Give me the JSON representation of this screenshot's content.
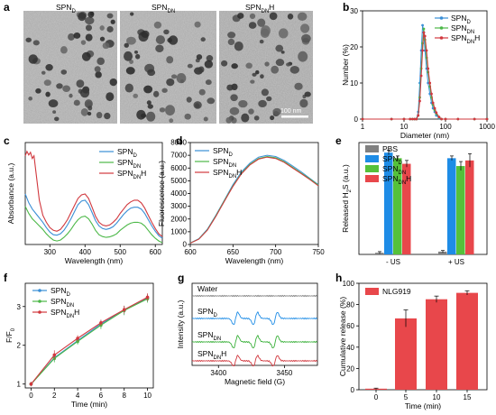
{
  "panel_labels": [
    "a",
    "b",
    "c",
    "d",
    "e",
    "f",
    "g",
    "h"
  ],
  "micrographs": [
    {
      "label": "SPN",
      "sub": "D"
    },
    {
      "label": "SPN",
      "sub": "DN"
    },
    {
      "label": "SPN",
      "sub": "DN",
      "suffix": "H"
    }
  ],
  "scale_bar": "100 nm",
  "colors": {
    "blue": "#3a8fd6",
    "green": "#4cb848",
    "red": "#d1383e",
    "grey": "#808080",
    "green_bar": "#55c13a",
    "red_bar": "#e8474b",
    "blue_bar": "#1e8ce6"
  },
  "chart_data": [
    {
      "panel": "b",
      "type": "line",
      "xlabel": "Diameter (nm)",
      "ylabel": "Number (%)",
      "xscale": "log",
      "xlim": [
        1,
        1000
      ],
      "ylim": [
        0,
        30
      ],
      "xticks": [
        "1",
        "10",
        "100",
        "1000"
      ],
      "yticks": [
        "0",
        "10",
        "20",
        "30"
      ],
      "legend": "top-right",
      "series": [
        {
          "name": "SPN",
          "sub": "D",
          "color": "#3a8fd6",
          "x": [
            1,
            5,
            10,
            14,
            16,
            18,
            20,
            22,
            24,
            26,
            28,
            30,
            32,
            35,
            38,
            42,
            46,
            50,
            55,
            60,
            70,
            80,
            100,
            200,
            500,
            1000
          ],
          "y": [
            0,
            0,
            0,
            0,
            0,
            0,
            0,
            2,
            10,
            19,
            26,
            24,
            19,
            14,
            10,
            7,
            4.5,
            3,
            2,
            1,
            0.3,
            0,
            0,
            0,
            0,
            0
          ]
        },
        {
          "name": "SPN",
          "sub": "DN",
          "color": "#4cb848",
          "x": [
            1,
            5,
            10,
            14,
            16,
            18,
            20,
            22,
            24,
            26,
            28,
            30,
            32,
            35,
            38,
            42,
            46,
            50,
            55,
            60,
            70,
            80,
            100,
            200,
            500,
            1000
          ],
          "y": [
            0,
            0,
            0,
            0,
            0,
            0,
            0,
            1,
            6,
            14,
            21,
            25,
            22,
            17,
            13,
            9,
            6,
            4,
            2.5,
            1.5,
            0.5,
            0,
            0,
            0,
            0,
            0
          ]
        },
        {
          "name": "SPN",
          "sub": "DN",
          "suffix": "H",
          "color": "#d1383e",
          "x": [
            1,
            5,
            10,
            14,
            16,
            18,
            20,
            22,
            24,
            26,
            28,
            30,
            32,
            35,
            38,
            42,
            46,
            50,
            55,
            60,
            70,
            80,
            100,
            200,
            500,
            1000
          ],
          "y": [
            0,
            0,
            0,
            0,
            0,
            0,
            0,
            1,
            5,
            12,
            19,
            24,
            23,
            19,
            14,
            10,
            7,
            4.5,
            3,
            1.8,
            0.6,
            0,
            0,
            0,
            0,
            0
          ]
        }
      ]
    },
    {
      "panel": "c",
      "type": "line",
      "xlabel": "Wavelength (nm)",
      "ylabel": "Absorbance (a.u.)",
      "xlim": [
        230,
        620
      ],
      "xticks": [
        "300",
        "400",
        "500",
        "600"
      ],
      "legend": "top-right",
      "series": [
        {
          "name": "SPN",
          "sub": "D",
          "color": "#3a8fd6",
          "x": [
            230,
            240,
            250,
            260,
            270,
            280,
            290,
            300,
            310,
            320,
            330,
            340,
            350,
            360,
            370,
            380,
            390,
            400,
            410,
            420,
            430,
            440,
            450,
            460,
            470,
            480,
            490,
            500,
            510,
            520,
            530,
            540,
            550,
            560,
            570,
            580,
            590,
            600,
            610,
            620
          ],
          "y": [
            0.62,
            0.52,
            0.45,
            0.4,
            0.35,
            0.3,
            0.24,
            0.19,
            0.16,
            0.155,
            0.17,
            0.21,
            0.27,
            0.34,
            0.42,
            0.5,
            0.54,
            0.55,
            0.5,
            0.41,
            0.32,
            0.26,
            0.23,
            0.22,
            0.23,
            0.25,
            0.29,
            0.34,
            0.39,
            0.43,
            0.46,
            0.47,
            0.47,
            0.45,
            0.4,
            0.33,
            0.26,
            0.2,
            0.15,
            0.12
          ]
        },
        {
          "name": "SPN",
          "sub": "DN",
          "color": "#4cb848",
          "x": [
            230,
            240,
            250,
            260,
            270,
            280,
            290,
            300,
            310,
            320,
            330,
            340,
            350,
            360,
            370,
            380,
            390,
            400,
            410,
            420,
            430,
            440,
            450,
            460,
            470,
            480,
            490,
            500,
            510,
            520,
            530,
            540,
            550,
            560,
            570,
            580,
            590,
            600,
            610,
            620
          ],
          "y": [
            0.48,
            0.4,
            0.34,
            0.3,
            0.26,
            0.22,
            0.17,
            0.13,
            0.1,
            0.09,
            0.1,
            0.13,
            0.17,
            0.22,
            0.28,
            0.33,
            0.36,
            0.37,
            0.34,
            0.28,
            0.21,
            0.16,
            0.14,
            0.13,
            0.135,
            0.15,
            0.17,
            0.21,
            0.24,
            0.27,
            0.29,
            0.3,
            0.3,
            0.29,
            0.26,
            0.21,
            0.16,
            0.12,
            0.09,
            0.07
          ]
        },
        {
          "name": "SPN",
          "sub": "DN",
          "suffix": "H",
          "color": "#d1383e",
          "x": [
            230,
            235,
            240,
            245,
            250,
            255,
            260,
            270,
            280,
            290,
            300,
            310,
            320,
            330,
            340,
            350,
            360,
            370,
            380,
            390,
            400,
            410,
            420,
            430,
            440,
            450,
            460,
            470,
            480,
            490,
            500,
            510,
            520,
            530,
            540,
            550,
            560,
            570,
            580,
            590,
            600,
            610,
            620
          ],
          "y": [
            1.05,
            1.1,
            1.06,
            1.09,
            1.02,
            1.05,
            0.88,
            0.55,
            0.38,
            0.3,
            0.24,
            0.21,
            0.2,
            0.22,
            0.27,
            0.33,
            0.41,
            0.49,
            0.57,
            0.61,
            0.62,
            0.57,
            0.47,
            0.37,
            0.3,
            0.27,
            0.26,
            0.27,
            0.3,
            0.34,
            0.4,
            0.45,
            0.5,
            0.53,
            0.55,
            0.55,
            0.52,
            0.46,
            0.38,
            0.3,
            0.23,
            0.17,
            0.14
          ]
        }
      ]
    },
    {
      "panel": "d",
      "type": "line",
      "xlabel": "Wavelength (nm)",
      "ylabel": "Fluorescence (a.u.)",
      "xlim": [
        600,
        750
      ],
      "ylim": [
        0,
        8000
      ],
      "xticks": [
        "600",
        "650",
        "700",
        "750"
      ],
      "yticks": [
        "0",
        "1000",
        "2000",
        "3000",
        "4000",
        "5000",
        "6000",
        "7000",
        "8000"
      ],
      "legend": "top-left",
      "series": [
        {
          "name": "SPN",
          "sub": "D",
          "color": "#3a8fd6",
          "x": [
            600,
            610,
            620,
            630,
            640,
            650,
            660,
            670,
            680,
            690,
            700,
            710,
            720,
            730,
            740,
            750
          ],
          "y": [
            120,
            450,
            1200,
            2300,
            3500,
            4700,
            5700,
            6400,
            6850,
            7000,
            6900,
            6600,
            6150,
            5700,
            5200,
            4700
          ]
        },
        {
          "name": "SPN",
          "sub": "DN",
          "color": "#4cb848",
          "x": [
            600,
            610,
            620,
            630,
            640,
            650,
            660,
            670,
            680,
            690,
            700,
            710,
            720,
            730,
            740,
            750
          ],
          "y": [
            110,
            430,
            1150,
            2250,
            3450,
            4600,
            5600,
            6300,
            6750,
            6900,
            6800,
            6500,
            6050,
            5600,
            5150,
            4650
          ]
        },
        {
          "name": "SPN",
          "sub": "DN",
          "suffix": "H",
          "color": "#d1383e",
          "x": [
            600,
            610,
            620,
            630,
            640,
            650,
            660,
            670,
            680,
            690,
            700,
            710,
            720,
            730,
            740,
            750
          ],
          "y": [
            100,
            420,
            1120,
            2200,
            3400,
            4550,
            5550,
            6250,
            6700,
            6850,
            6750,
            6450,
            6000,
            5550,
            5100,
            4600
          ]
        }
      ]
    },
    {
      "panel": "e",
      "type": "bar",
      "ylabel": "Released H2S (a.u.)",
      "categories": [
        "- US",
        "+ US"
      ],
      "ylim": [
        0,
        100
      ],
      "legend": "top-left",
      "series": [
        {
          "name": "PBS",
          "color": "#808080",
          "values": [
            1.5,
            2.5
          ],
          "err": [
            1,
            1
          ]
        },
        {
          "name": "SPN",
          "sub": "D",
          "color": "#1e8ce6",
          "values": [
            91,
            86
          ],
          "err": [
            2,
            2
          ]
        },
        {
          "name": "SPN",
          "sub": "DN",
          "color": "#55c13a",
          "values": [
            86,
            79
          ],
          "err": [
            2,
            4
          ]
        },
        {
          "name": "SPN",
          "sub": "DN",
          "suffix": "H",
          "color": "#e8474b",
          "values": [
            81,
            84
          ],
          "err": [
            3,
            6
          ]
        }
      ]
    },
    {
      "panel": "f",
      "type": "line",
      "xlabel": "Time (min)",
      "ylabel": "F/F0",
      "xlim": [
        -0.5,
        10.5
      ],
      "ylim": [
        0.9,
        3.6
      ],
      "xticks": [
        "0",
        "2",
        "4",
        "6",
        "8",
        "10"
      ],
      "yticks": [
        "1",
        "2",
        "3"
      ],
      "legend": "top-left",
      "series": [
        {
          "name": "SPN",
          "sub": "D",
          "color": "#3a8fd6",
          "x": [
            0,
            2,
            4,
            6,
            8,
            10
          ],
          "y": [
            1.0,
            1.68,
            2.12,
            2.55,
            2.9,
            3.22
          ],
          "err": [
            0.05,
            0.1,
            0.08,
            0.1,
            0.12,
            0.1
          ]
        },
        {
          "name": "SPN",
          "sub": "DN",
          "color": "#4cb848",
          "x": [
            0,
            2,
            4,
            6,
            8,
            10
          ],
          "y": [
            1.0,
            1.66,
            2.1,
            2.52,
            2.9,
            3.2
          ],
          "err": [
            0.05,
            0.1,
            0.08,
            0.1,
            0.12,
            0.1
          ]
        },
        {
          "name": "SPN",
          "sub": "DN",
          "suffix": "H",
          "color": "#d1383e",
          "x": [
            0,
            2,
            4,
            6,
            8,
            10
          ],
          "y": [
            1.0,
            1.75,
            2.18,
            2.58,
            2.92,
            3.24
          ],
          "err": [
            0.06,
            0.12,
            0.08,
            0.08,
            0.1,
            0.1
          ]
        }
      ]
    },
    {
      "panel": "g",
      "type": "line",
      "xlabel": "Magnetic field (G)",
      "ylabel": "Intensity (a.u.)",
      "xlim": [
        3380,
        3475
      ],
      "xticks": [
        "3400",
        "3450"
      ],
      "traces": [
        {
          "name": "Water",
          "color": "#808080"
        },
        {
          "name": "SPN",
          "sub": "D",
          "color": "#1e8ce6"
        },
        {
          "name": "SPN",
          "sub": "DN",
          "color": "#3ab03a"
        },
        {
          "name": "SPN",
          "sub": "DN",
          "suffix": "H",
          "color": "#d1383e"
        }
      ],
      "epr_peaks": [
        3413,
        3428,
        3443
      ]
    },
    {
      "panel": "h",
      "type": "bar",
      "xlabel": "Time (min)",
      "ylabel": "Cumulative release (%)",
      "categories": [
        "0",
        "5",
        "10",
        "15"
      ],
      "ylim": [
        0,
        100
      ],
      "yticks": [
        "0",
        "20",
        "40",
        "60",
        "80",
        "100"
      ],
      "legend": "top-left",
      "series": [
        {
          "name": "NLG919",
          "color": "#e8474b",
          "values": [
            1,
            67,
            85,
            91
          ],
          "err": [
            0.5,
            8,
            3,
            2
          ]
        }
      ]
    }
  ]
}
